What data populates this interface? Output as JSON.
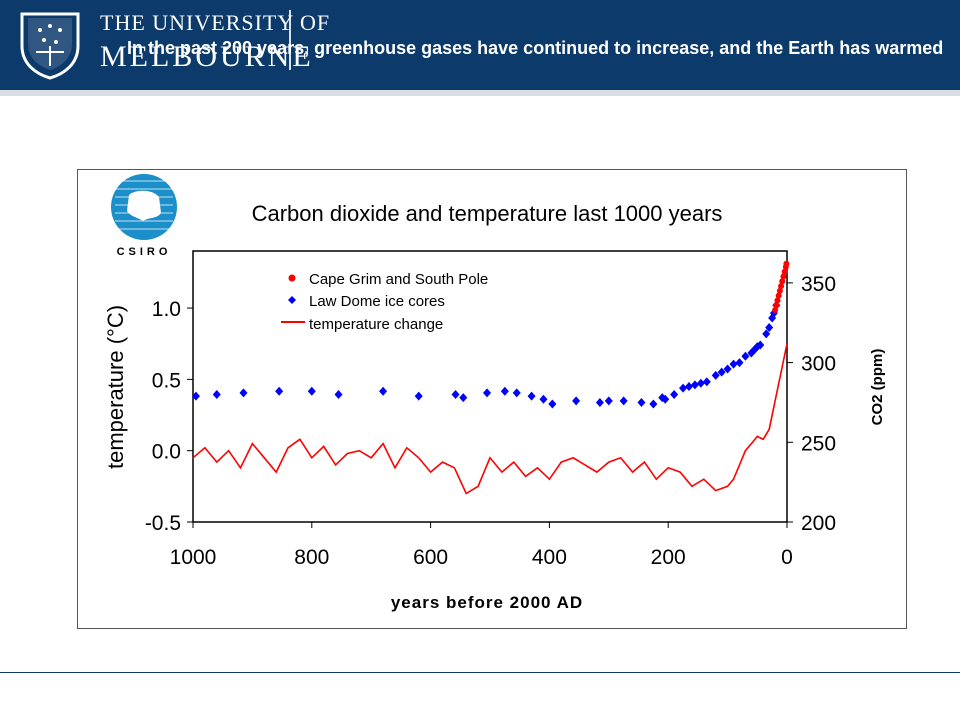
{
  "header": {
    "logo_line1": "THE UNIVERSITY OF",
    "logo_line2": "MELBOURNE",
    "slide_title": "In the past 200 years, greenhouse gases have continued to increase, and the Earth has warmed"
  },
  "colors": {
    "banner": "#0b3a6b",
    "temperature": "#ff0000",
    "cape_grim": "#ff0000",
    "law_dome": "#0000ff",
    "csiro_logo": "#1a8fc9"
  },
  "icons": [
    "university-crest-icon",
    "csiro-logo-icon"
  ],
  "chart_data": {
    "type": "line+scatter",
    "title": "Carbon dioxide and temperature last 1000 years",
    "logo_text": "CSIRO",
    "xlabel": "years before 2000 AD",
    "xlim": [
      1000,
      0
    ],
    "x_ticks": [
      "1000",
      "800",
      "600",
      "400",
      "200",
      "0"
    ],
    "ylabel_left": "temperature (°C)",
    "ylim_left": [
      -0.5,
      1.4
    ],
    "y_ticks_left": [
      "-0.5",
      "0.0",
      "0.5",
      "1.0"
    ],
    "ylabel_right": "CO2 (ppm)",
    "ylim_right": [
      200,
      370
    ],
    "y_ticks_right": [
      "200",
      "250",
      "300",
      "350"
    ],
    "legend_position": "top-left",
    "legend": [
      "Cape Grim and South Pole",
      "Law Dome ice cores",
      "temperature change"
    ],
    "series": [
      {
        "name": "Law Dome ice cores",
        "axis": "right",
        "marker": "diamond",
        "points": [
          [
            995,
            279
          ],
          [
            960,
            280
          ],
          [
            915,
            281
          ],
          [
            855,
            282
          ],
          [
            800,
            282
          ],
          [
            755,
            280
          ],
          [
            680,
            282
          ],
          [
            620,
            279
          ],
          [
            558,
            280
          ],
          [
            545,
            278
          ],
          [
            505,
            281
          ],
          [
            475,
            282
          ],
          [
            455,
            281
          ],
          [
            430,
            279
          ],
          [
            410,
            277
          ],
          [
            395,
            274
          ],
          [
            355,
            276
          ],
          [
            315,
            275
          ],
          [
            300,
            276
          ],
          [
            275,
            276
          ],
          [
            245,
            275
          ],
          [
            225,
            274
          ],
          [
            210,
            278
          ],
          [
            205,
            277
          ],
          [
            190,
            280
          ],
          [
            175,
            284
          ],
          [
            165,
            285
          ],
          [
            155,
            286
          ],
          [
            145,
            287
          ],
          [
            135,
            288
          ],
          [
            120,
            292
          ],
          [
            110,
            294
          ],
          [
            100,
            296
          ],
          [
            90,
            299
          ],
          [
            80,
            300
          ],
          [
            70,
            304
          ],
          [
            60,
            306
          ],
          [
            55,
            308
          ],
          [
            50,
            310
          ],
          [
            45,
            311
          ],
          [
            35,
            318
          ],
          [
            30,
            322
          ],
          [
            25,
            328
          ],
          [
            22,
            331
          ],
          [
            18,
            336
          ]
        ]
      },
      {
        "name": "Cape Grim and South Pole",
        "axis": "right",
        "marker": "circle",
        "points": [
          [
            20,
            333
          ],
          [
            18,
            336
          ],
          [
            16,
            339
          ],
          [
            14,
            342
          ],
          [
            12,
            345
          ],
          [
            10,
            348
          ],
          [
            8,
            351
          ],
          [
            6,
            354
          ],
          [
            4,
            357
          ],
          [
            2,
            360
          ],
          [
            1,
            362
          ]
        ]
      },
      {
        "name": "temperature change",
        "axis": "left",
        "style": "line",
        "points": [
          [
            1000,
            -0.05
          ],
          [
            980,
            0.02
          ],
          [
            960,
            -0.08
          ],
          [
            940,
            0.0
          ],
          [
            920,
            -0.12
          ],
          [
            900,
            0.05
          ],
          [
            880,
            -0.05
          ],
          [
            860,
            -0.15
          ],
          [
            840,
            0.02
          ],
          [
            820,
            0.08
          ],
          [
            800,
            -0.05
          ],
          [
            780,
            0.03
          ],
          [
            760,
            -0.1
          ],
          [
            740,
            -0.02
          ],
          [
            720,
            0.0
          ],
          [
            700,
            -0.05
          ],
          [
            680,
            0.05
          ],
          [
            660,
            -0.12
          ],
          [
            640,
            0.02
          ],
          [
            620,
            -0.05
          ],
          [
            600,
            -0.15
          ],
          [
            580,
            -0.08
          ],
          [
            560,
            -0.12
          ],
          [
            540,
            -0.3
          ],
          [
            520,
            -0.25
          ],
          [
            500,
            -0.05
          ],
          [
            480,
            -0.15
          ],
          [
            460,
            -0.08
          ],
          [
            440,
            -0.18
          ],
          [
            420,
            -0.12
          ],
          [
            400,
            -0.2
          ],
          [
            380,
            -0.08
          ],
          [
            360,
            -0.05
          ],
          [
            340,
            -0.1
          ],
          [
            320,
            -0.15
          ],
          [
            300,
            -0.08
          ],
          [
            280,
            -0.05
          ],
          [
            260,
            -0.15
          ],
          [
            240,
            -0.08
          ],
          [
            220,
            -0.2
          ],
          [
            200,
            -0.12
          ],
          [
            180,
            -0.15
          ],
          [
            160,
            -0.25
          ],
          [
            140,
            -0.2
          ],
          [
            120,
            -0.28
          ],
          [
            100,
            -0.25
          ],
          [
            90,
            -0.2
          ],
          [
            80,
            -0.1
          ],
          [
            70,
            0.0
          ],
          [
            60,
            0.05
          ],
          [
            50,
            0.1
          ],
          [
            40,
            0.08
          ],
          [
            30,
            0.15
          ],
          [
            20,
            0.35
          ],
          [
            10,
            0.55
          ],
          [
            0,
            0.75
          ]
        ]
      }
    ]
  }
}
